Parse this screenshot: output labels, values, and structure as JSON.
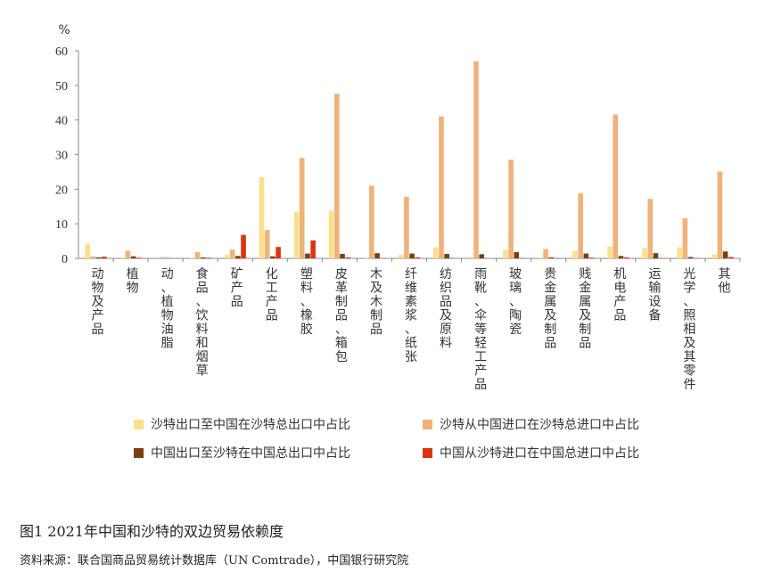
{
  "chart_data": {
    "type": "bar",
    "ylabel": "%",
    "ylim": [
      0,
      60
    ],
    "yticks": [
      0,
      10,
      20,
      30,
      40,
      50,
      60
    ],
    "grid": false,
    "legend_position": "bottom",
    "categories": [
      "动物及产品",
      "植物",
      "动、植物油脂",
      "食品、饮料和烟草",
      "矿产品",
      "化工产品",
      "塑料、橡胶",
      "皮革制品、箱包",
      "木及木制品",
      "纤维素浆、纸张",
      "纺织品及原料",
      "雨靴、伞等轻工产品",
      "玻璃、陶瓷",
      "贵金属及制品",
      "贱金属及制品",
      "机电产品",
      "运输设备",
      "光学、照相及其零件",
      "其他"
    ],
    "series": [
      {
        "name": "沙特出口至中国在沙特总出口中占比",
        "color": "#FBE08C",
        "values": [
          4.3,
          0.3,
          0.0,
          0.2,
          1.0,
          23.5,
          13.5,
          13.8,
          0.2,
          1.0,
          3.2,
          0.5,
          2.5,
          0.3,
          2.2,
          3.5,
          3.0,
          3.2,
          1.2
        ]
      },
      {
        "name": "沙特从中国进口在沙特总进口中占比",
        "color": "#F0B27A",
        "values": [
          0.6,
          2.2,
          0.4,
          1.8,
          2.5,
          8.2,
          29.0,
          47.6,
          21.0,
          17.8,
          41.0,
          57.0,
          28.5,
          2.7,
          18.8,
          41.6,
          17.2,
          11.6,
          25.1
        ]
      },
      {
        "name": "中国出口至沙特在中国总出口中占比",
        "color": "#7B3F12",
        "values": [
          0.3,
          0.6,
          0.1,
          0.3,
          0.7,
          0.6,
          1.4,
          1.3,
          1.5,
          1.4,
          1.3,
          1.2,
          1.8,
          0.3,
          1.4,
          0.7,
          1.5,
          0.4,
          2.0
        ]
      },
      {
        "name": "中国从沙特进口在中国总进口中占比",
        "color": "#D9360F",
        "values": [
          0.5,
          0.2,
          0.0,
          0.2,
          6.8,
          3.3,
          5.2,
          0.3,
          0.1,
          0.3,
          0.1,
          0.0,
          0.1,
          0.1,
          0.2,
          0.3,
          0.1,
          0.1,
          0.4
        ]
      }
    ]
  },
  "caption": "图1 2021年中国和沙特的双边贸易依赖度",
  "source": "资料来源：联合国商品贸易统计数据库（UN Comtrade），中国银行研究院"
}
